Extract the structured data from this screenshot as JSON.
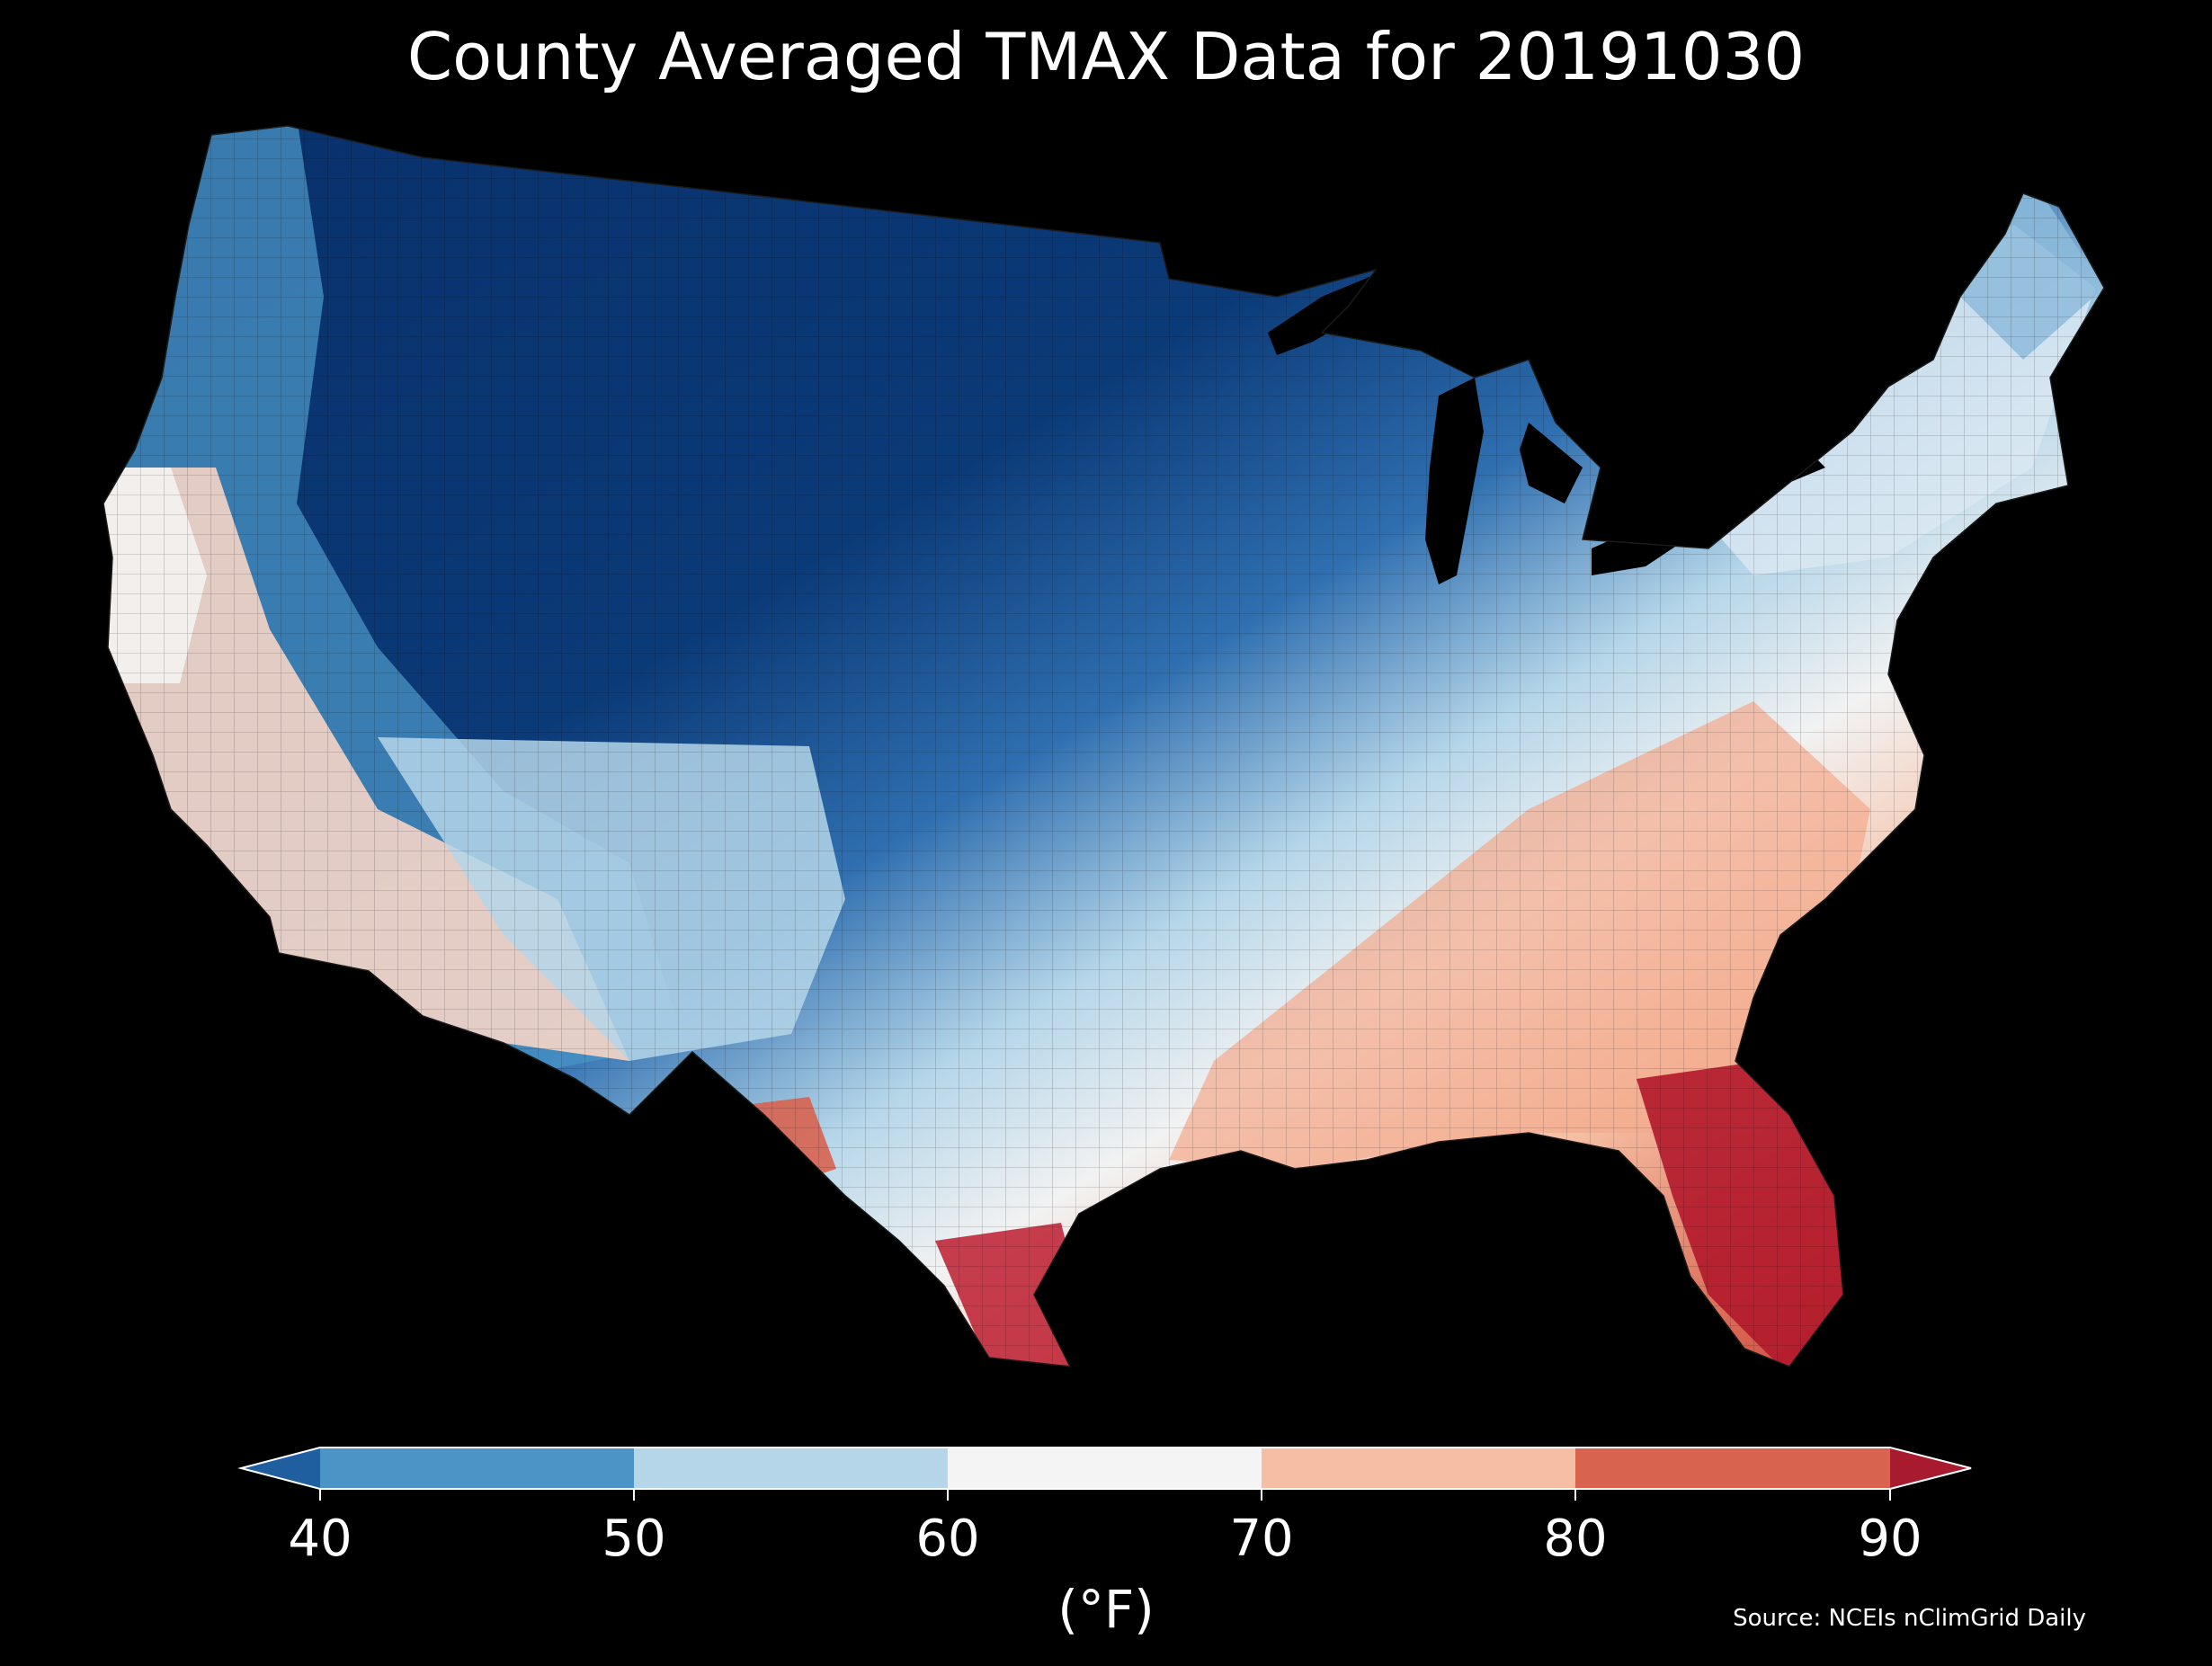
{
  "title": "County Averaged TMAX Data for 20191030",
  "colorbar": {
    "unit_label": "(°F)",
    "ticks": [
      "40",
      "50",
      "60",
      "70",
      "80",
      "90"
    ],
    "bins": [
      {
        "range": "<40",
        "color": "#1f5fa0"
      },
      {
        "range": "40-50",
        "color": "#4a94c6"
      },
      {
        "range": "50-60",
        "color": "#b5d6e9"
      },
      {
        "range": "60-70",
        "color": "#f4f4f4"
      },
      {
        "range": "70-80",
        "color": "#f6bfa4"
      },
      {
        "range": "80-90",
        "color": "#d8634f"
      },
      {
        "range": ">90",
        "color": "#a81a2e"
      }
    ]
  },
  "source": "Source: NCEIs nClimGrid Daily",
  "map": {
    "region": "contiguous-united-states",
    "style": "county-choropleth",
    "background": "#000000",
    "palette": [
      "#08306b",
      "#1f5fa0",
      "#4a94c6",
      "#b5d6e9",
      "#f4f4f4",
      "#f6bfa4",
      "#d8634f",
      "#b2182b"
    ]
  }
}
